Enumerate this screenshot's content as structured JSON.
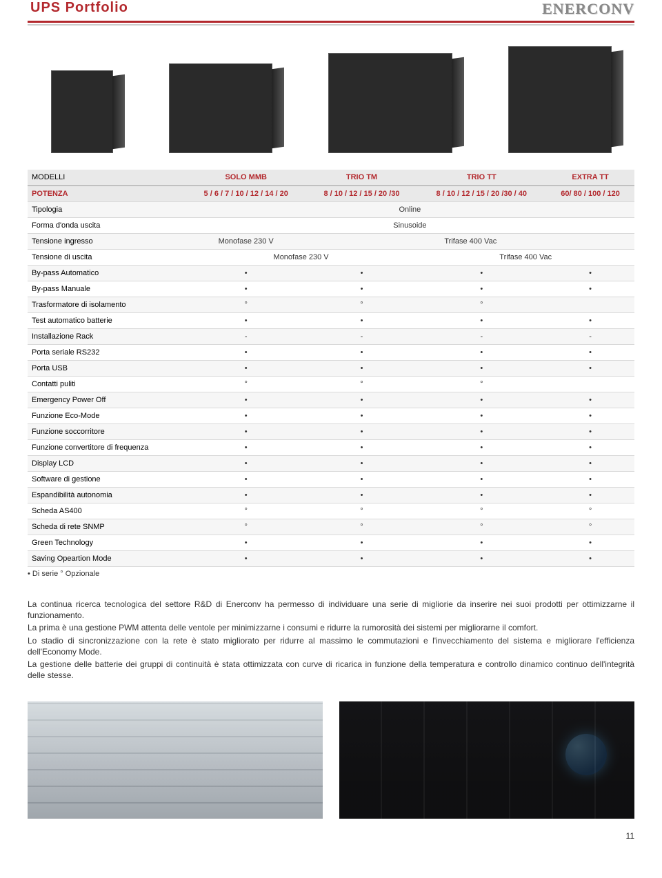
{
  "header": {
    "title": "UPS Portfolio",
    "brand": "ENERCONV"
  },
  "table": {
    "columns": [
      "MODELLI",
      "SOLO MMB",
      "TRIO TM",
      "TRIO TT",
      "EXTRA TT"
    ],
    "rows": [
      {
        "label": "POTENZA",
        "cells": [
          "5 / 6 / 7 / 10 / 12 / 14 / 20",
          "8 / 10 / 12 / 15 / 20 /30",
          "8 / 10 / 12 / 15 / 20 /30 / 40",
          "60/ 80 / 100 / 120"
        ]
      },
      {
        "label": "Tipologia",
        "span": "Online"
      },
      {
        "label": "Forma d'onda uscita",
        "span": "Sinusoide"
      },
      {
        "label": "Tensione ingresso",
        "cells": [
          "Monofase 230 V",
          "Trifase 400 Vac"
        ],
        "spans": [
          1,
          3
        ]
      },
      {
        "label": "Tensione di uscita",
        "cells": [
          "Monofase 230 V",
          "Trifase 400 Vac"
        ],
        "spans": [
          2,
          2
        ]
      },
      {
        "label": "By-pass Automatico",
        "cells": [
          "•",
          "•",
          "•",
          "•"
        ]
      },
      {
        "label": "By-pass Manuale",
        "cells": [
          "•",
          "•",
          "•",
          "•"
        ]
      },
      {
        "label": "Trasformatore di isolamento",
        "cells": [
          "°",
          "°",
          "°",
          ""
        ]
      },
      {
        "label": "Test automatico batterie",
        "cells": [
          "•",
          "•",
          "•",
          "•"
        ]
      },
      {
        "label": "Installazione Rack",
        "cells": [
          "-",
          "-",
          "-",
          "-"
        ]
      },
      {
        "label": "Porta seriale RS232",
        "cells": [
          "•",
          "•",
          "•",
          "•"
        ]
      },
      {
        "label": "Porta USB",
        "cells": [
          "•",
          "•",
          "•",
          "•"
        ]
      },
      {
        "label": "Contatti puliti",
        "cells": [
          "°",
          "°",
          "°",
          ""
        ]
      },
      {
        "label": "Emergency Power Off",
        "cells": [
          "•",
          "•",
          "•",
          "•"
        ]
      },
      {
        "label": "Funzione Eco-Mode",
        "cells": [
          "•",
          "•",
          "•",
          "•"
        ]
      },
      {
        "label": "Funzione soccorritore",
        "cells": [
          "•",
          "•",
          "•",
          "•"
        ]
      },
      {
        "label": "Funzione convertitore di frequenza",
        "cells": [
          "•",
          "•",
          "•",
          "•"
        ]
      },
      {
        "label": "Display LCD",
        "cells": [
          "•",
          "•",
          "•",
          "•"
        ]
      },
      {
        "label": "Software di gestione",
        "cells": [
          "•",
          "•",
          "•",
          "•"
        ]
      },
      {
        "label": "Espandibilità autonomia",
        "cells": [
          "•",
          "•",
          "•",
          "•"
        ]
      },
      {
        "label": "Scheda AS400",
        "cells": [
          "°",
          "°",
          "°",
          "°"
        ]
      },
      {
        "label": "Scheda di rete SNMP",
        "cells": [
          "°",
          "°",
          "°",
          "°"
        ]
      },
      {
        "label": "Green Technology",
        "cells": [
          "•",
          "•",
          "•",
          "•"
        ]
      },
      {
        "label": "Saving Opeartion Mode",
        "cells": [
          "•",
          "•",
          "•",
          "•"
        ]
      }
    ],
    "legend": "• Di serie      ° Opzionale"
  },
  "paragraphs": [
    "La continua ricerca tecnologica del settore R&D di Enerconv ha permesso di individuare una serie di migliorie da inserire nei suoi prodotti per ottimizzarne il funzionamento.",
    "La prima è una gestione PWM attenta delle ventole per minimizzarne i consumi e ridurre la rumorosità dei sistemi per migliorarne il comfort.",
    "Lo stadio di sincronizzazione con la rete è stato migliorato per ridurre al massimo le commutazioni e l'invecchiamento del sistema e migliorare l'efficienza dell'Economy Mode.",
    "La gestione delle batterie dei gruppi di continuità è stata ottimizzata con curve di ricarica in funzione della temperatura e controllo dinamico continuo dell'integrità delle stesse."
  ],
  "page_number": "11",
  "colors": {
    "accent": "#b3282d",
    "row_alt": "#f6f6f6",
    "header_bg": "#e9e9e9",
    "border": "#d9d9d9"
  }
}
